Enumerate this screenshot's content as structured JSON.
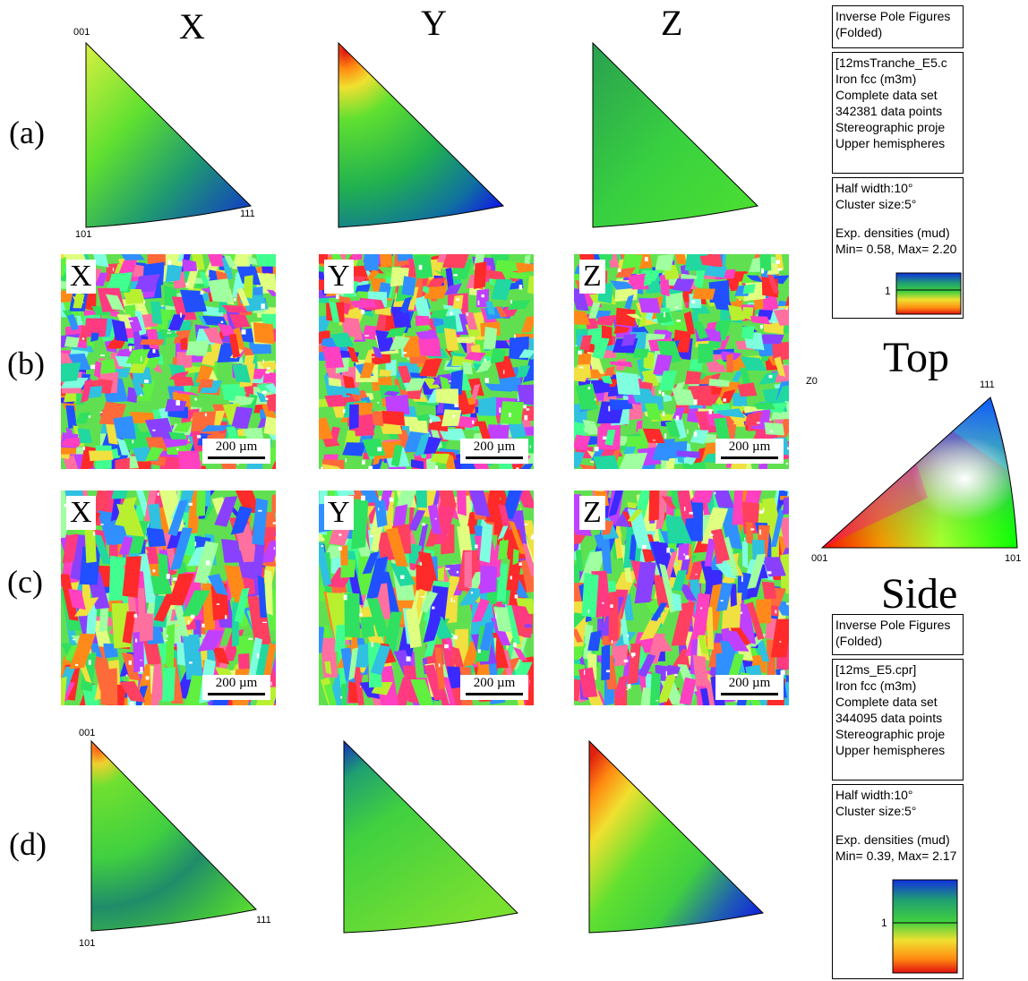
{
  "columns": [
    "X",
    "Y",
    "Z"
  ],
  "rows": [
    "(a)",
    "(b)",
    "(c)",
    "(d)"
  ],
  "ipf_labels": {
    "a": {
      "top": "001",
      "bottom": "101",
      "right": "111"
    },
    "d": {
      "top": "001",
      "bottom": "101",
      "right": "111"
    }
  },
  "map_labels": {
    "b": [
      "X",
      "Y",
      "Z"
    ],
    "c": [
      "X",
      "Y",
      "Z"
    ]
  },
  "scale_bar": "200 µm",
  "key": {
    "side_label": "Z0",
    "corners": {
      "top": "111",
      "left": "001",
      "right": "101"
    }
  },
  "panel_titles": {
    "top": "Top",
    "side": "Side"
  },
  "top_info": {
    "title_box": [
      "Inverse Pole Figures",
      "(Folded)"
    ],
    "data_box": [
      "[12msTranche_E5.c",
      "Iron fcc (m3m)",
      "Complete data set",
      "342381 data points",
      "Stereographic proje",
      "Upper hemispheres"
    ],
    "params_box": [
      "Half width:10°",
      "Cluster size:5°",
      "",
      "Exp. densities (mud)",
      "Min= 0.58, Max= 2.20"
    ],
    "legend_tick": "1"
  },
  "side_info": {
    "title_box": [
      "Inverse Pole Figures",
      "(Folded)"
    ],
    "data_box": [
      "[12ms_E5.cpr]",
      "Iron fcc (m3m)",
      "Complete data set",
      "344095 data points",
      "Stereographic proje",
      "Upper hemispheres"
    ],
    "params_box": [
      "Half width:10°",
      "Cluster size:5°",
      "",
      "Exp. densities (mud)",
      "Min= 0.39, Max= 2.17"
    ],
    "legend_tick": "1"
  }
}
